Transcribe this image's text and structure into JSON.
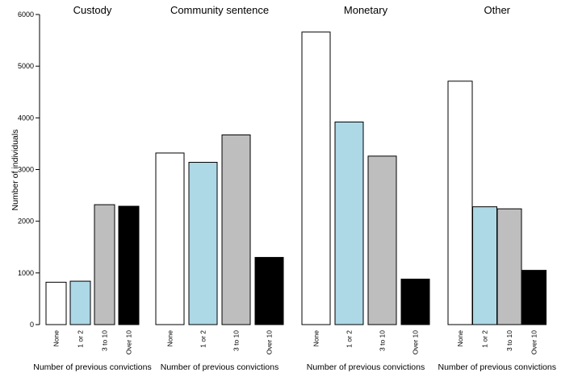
{
  "chart_data": {
    "type": "bar",
    "ylabel": "Number of individuals",
    "ylim": [
      0,
      6000
    ],
    "yticks": [
      0,
      1000,
      2000,
      3000,
      4000,
      5000,
      6000
    ],
    "categories": [
      "None",
      "1 or 2",
      "3 to 10",
      "Over 10"
    ],
    "category_colors": [
      "#ffffff",
      "#add8e6",
      "#bebebe",
      "#000000"
    ],
    "panels": [
      {
        "title": "Custody",
        "xlabel": "Number of previous convictions",
        "values": [
          820,
          840,
          2320,
          2290
        ]
      },
      {
        "title": "Community sentence",
        "xlabel": "Number of previous convictions",
        "values": [
          3320,
          3140,
          3670,
          1300
        ]
      },
      {
        "title": "Monetary",
        "xlabel": "Number of previous convictions",
        "values": [
          5660,
          3920,
          3260,
          880
        ]
      },
      {
        "title": "Other",
        "xlabel": "Number of previous convictions",
        "values": [
          4710,
          2280,
          2240,
          1050
        ]
      }
    ]
  }
}
